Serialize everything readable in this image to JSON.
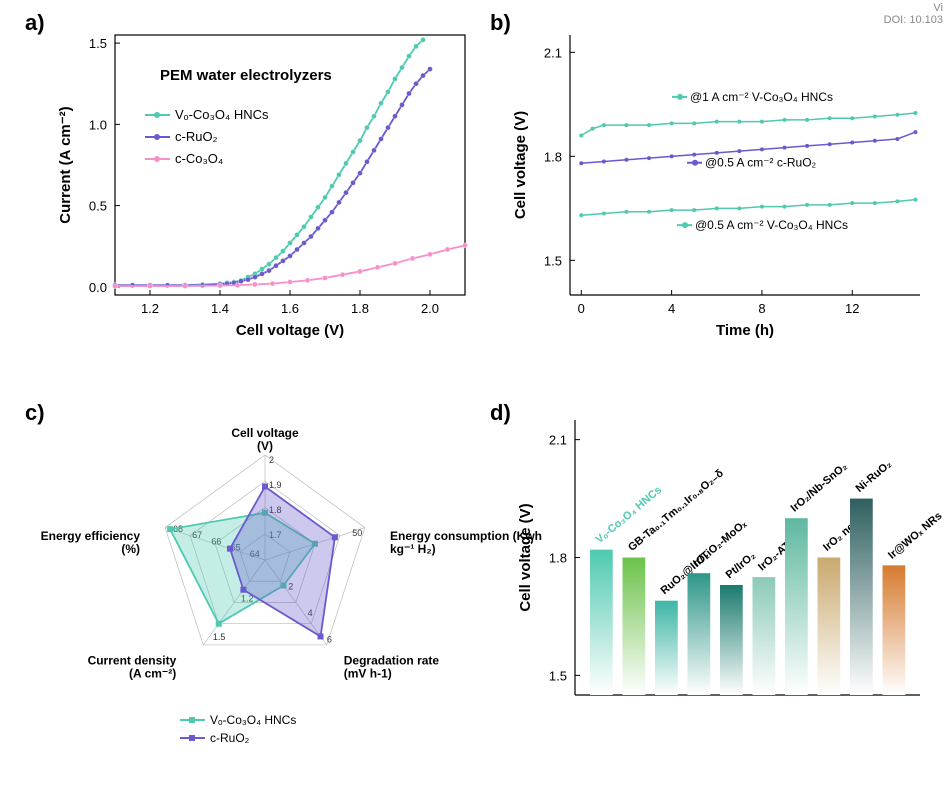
{
  "header": {
    "line1": "Vi",
    "line2": "DOI: 10.103"
  },
  "labels": {
    "a": "a)",
    "b": "b)",
    "c": "c)",
    "d": "d)"
  },
  "panel_a": {
    "type": "line",
    "title": "PEM water electrolyzers",
    "xlabel": "Cell voltage (V)",
    "ylabel": "Current (A cm⁻²)",
    "xlim": [
      1.1,
      2.1
    ],
    "ylim": [
      -0.05,
      1.55
    ],
    "xticks": [
      1.2,
      1.4,
      1.6,
      1.8,
      2.0
    ],
    "yticks": [
      0.0,
      0.5,
      1.0,
      1.5
    ],
    "series": [
      {
        "name": "Vₒ-Co₃O₄ HNCs",
        "color": "#4fc9b0",
        "data": [
          [
            1.1,
            0.01
          ],
          [
            1.15,
            0.01
          ],
          [
            1.2,
            0.01
          ],
          [
            1.25,
            0.01
          ],
          [
            1.3,
            0.01
          ],
          [
            1.35,
            0.015
          ],
          [
            1.4,
            0.02
          ],
          [
            1.42,
            0.025
          ],
          [
            1.44,
            0.03
          ],
          [
            1.46,
            0.04
          ],
          [
            1.48,
            0.06
          ],
          [
            1.5,
            0.08
          ],
          [
            1.52,
            0.11
          ],
          [
            1.54,
            0.14
          ],
          [
            1.56,
            0.18
          ],
          [
            1.58,
            0.22
          ],
          [
            1.6,
            0.27
          ],
          [
            1.62,
            0.32
          ],
          [
            1.64,
            0.37
          ],
          [
            1.66,
            0.43
          ],
          [
            1.68,
            0.49
          ],
          [
            1.7,
            0.55
          ],
          [
            1.72,
            0.62
          ],
          [
            1.74,
            0.69
          ],
          [
            1.76,
            0.76
          ],
          [
            1.78,
            0.83
          ],
          [
            1.8,
            0.9
          ],
          [
            1.82,
            0.98
          ],
          [
            1.84,
            1.05
          ],
          [
            1.86,
            1.13
          ],
          [
            1.88,
            1.2
          ],
          [
            1.9,
            1.28
          ],
          [
            1.92,
            1.35
          ],
          [
            1.94,
            1.42
          ],
          [
            1.96,
            1.48
          ],
          [
            1.98,
            1.52
          ]
        ]
      },
      {
        "name": "c-RuO₂",
        "color": "#6a5acd",
        "data": [
          [
            1.1,
            0.01
          ],
          [
            1.15,
            0.01
          ],
          [
            1.2,
            0.01
          ],
          [
            1.25,
            0.01
          ],
          [
            1.3,
            0.01
          ],
          [
            1.35,
            0.01
          ],
          [
            1.4,
            0.015
          ],
          [
            1.42,
            0.02
          ],
          [
            1.44,
            0.025
          ],
          [
            1.46,
            0.035
          ],
          [
            1.48,
            0.045
          ],
          [
            1.5,
            0.06
          ],
          [
            1.52,
            0.08
          ],
          [
            1.54,
            0.1
          ],
          [
            1.56,
            0.13
          ],
          [
            1.58,
            0.16
          ],
          [
            1.6,
            0.19
          ],
          [
            1.62,
            0.23
          ],
          [
            1.64,
            0.27
          ],
          [
            1.66,
            0.31
          ],
          [
            1.68,
            0.36
          ],
          [
            1.7,
            0.41
          ],
          [
            1.72,
            0.46
          ],
          [
            1.74,
            0.52
          ],
          [
            1.76,
            0.58
          ],
          [
            1.78,
            0.64
          ],
          [
            1.8,
            0.7
          ],
          [
            1.82,
            0.77
          ],
          [
            1.84,
            0.84
          ],
          [
            1.86,
            0.91
          ],
          [
            1.88,
            0.98
          ],
          [
            1.9,
            1.05
          ],
          [
            1.92,
            1.12
          ],
          [
            1.94,
            1.19
          ],
          [
            1.96,
            1.25
          ],
          [
            1.98,
            1.3
          ],
          [
            2.0,
            1.34
          ]
        ]
      },
      {
        "name": "c-Co₃O₄",
        "color": "#f78fc9",
        "data": [
          [
            1.1,
            0.005
          ],
          [
            1.2,
            0.005
          ],
          [
            1.3,
            0.005
          ],
          [
            1.4,
            0.008
          ],
          [
            1.45,
            0.01
          ],
          [
            1.5,
            0.015
          ],
          [
            1.55,
            0.02
          ],
          [
            1.6,
            0.03
          ],
          [
            1.65,
            0.04
          ],
          [
            1.7,
            0.055
          ],
          [
            1.75,
            0.075
          ],
          [
            1.8,
            0.095
          ],
          [
            1.85,
            0.12
          ],
          [
            1.9,
            0.145
          ],
          [
            1.95,
            0.175
          ],
          [
            2.0,
            0.2
          ],
          [
            2.05,
            0.23
          ],
          [
            2.1,
            0.255
          ]
        ]
      }
    ],
    "title_fontsize": 15,
    "marker_size": 2.5,
    "line_width": 1.8
  },
  "panel_b": {
    "type": "line",
    "xlabel": "Time (h)",
    "ylabel": "Cell voltage (V)",
    "xlim": [
      -0.5,
      15
    ],
    "ylim": [
      1.4,
      2.15
    ],
    "xticks": [
      0,
      4,
      8,
      12
    ],
    "yticks": [
      1.5,
      1.8,
      2.1
    ],
    "series": [
      {
        "name": "@1 A cm⁻² V-Co₃O₄ HNCs",
        "color": "#4fc9b0",
        "y": 1.89,
        "data": [
          [
            0,
            1.86
          ],
          [
            0.5,
            1.88
          ],
          [
            1,
            1.89
          ],
          [
            2,
            1.89
          ],
          [
            3,
            1.89
          ],
          [
            4,
            1.895
          ],
          [
            5,
            1.895
          ],
          [
            6,
            1.9
          ],
          [
            7,
            1.9
          ],
          [
            8,
            1.9
          ],
          [
            9,
            1.905
          ],
          [
            10,
            1.905
          ],
          [
            11,
            1.91
          ],
          [
            12,
            1.91
          ],
          [
            13,
            1.915
          ],
          [
            14,
            1.92
          ],
          [
            14.8,
            1.925
          ]
        ]
      },
      {
        "name": "@0.5 A cm⁻² c-RuO₂",
        "color": "#6a5acd",
        "y": 1.8,
        "data": [
          [
            0,
            1.78
          ],
          [
            1,
            1.785
          ],
          [
            2,
            1.79
          ],
          [
            3,
            1.795
          ],
          [
            4,
            1.8
          ],
          [
            5,
            1.805
          ],
          [
            6,
            1.81
          ],
          [
            7,
            1.815
          ],
          [
            8,
            1.82
          ],
          [
            9,
            1.825
          ],
          [
            10,
            1.83
          ],
          [
            11,
            1.835
          ],
          [
            12,
            1.84
          ],
          [
            13,
            1.845
          ],
          [
            14,
            1.85
          ],
          [
            14.8,
            1.87
          ]
        ]
      },
      {
        "name": "@0.5 A cm⁻² V-Co₃O₄ HNCs",
        "color": "#4fc9b0",
        "y": 1.64,
        "data": [
          [
            0,
            1.63
          ],
          [
            1,
            1.635
          ],
          [
            2,
            1.64
          ],
          [
            3,
            1.64
          ],
          [
            4,
            1.645
          ],
          [
            5,
            1.645
          ],
          [
            6,
            1.65
          ],
          [
            7,
            1.65
          ],
          [
            8,
            1.655
          ],
          [
            9,
            1.655
          ],
          [
            10,
            1.66
          ],
          [
            11,
            1.66
          ],
          [
            12,
            1.665
          ],
          [
            13,
            1.665
          ],
          [
            14,
            1.67
          ],
          [
            14.8,
            1.675
          ]
        ]
      }
    ],
    "marker_size": 2,
    "line_width": 1.5
  },
  "panel_c": {
    "type": "radar",
    "axes": [
      {
        "label": "Cell voltage (V)",
        "ticks": [
          1.7,
          1.8,
          1.9,
          2.0
        ]
      },
      {
        "label": "Energy consumption (Kwh kg⁻¹ H₂)",
        "ticks": [
          50
        ]
      },
      {
        "label": "Degradation rate (mV h-1)",
        "ticks": [
          2,
          4,
          6
        ]
      },
      {
        "label": "Current density (A cm⁻²)",
        "ticks": [
          1.2,
          1.5
        ]
      },
      {
        "label": "Energy efficiency (%)",
        "ticks": [
          64,
          65,
          66,
          67,
          68
        ]
      }
    ],
    "series": [
      {
        "name": "Vₒ-Co₃O₄ HNCs",
        "color": "#4fc9b0",
        "fill": "#4fc9b055",
        "values": [
          0.45,
          0.5,
          0.3,
          0.75,
          0.95
        ]
      },
      {
        "name": "c-RuO₂",
        "color": "#6a5acd",
        "fill": "#6a5acd55",
        "values": [
          0.7,
          0.7,
          0.9,
          0.35,
          0.35
        ]
      }
    ]
  },
  "panel_d": {
    "type": "bar",
    "ylabel": "Cell voltage (V)",
    "ylim": [
      1.45,
      2.15
    ],
    "yticks": [
      1.5,
      1.8,
      2.1
    ],
    "bars": [
      {
        "label": "Vₒ-Co₃O₄ HNCs",
        "value": 1.82,
        "color": "#4fc9b0",
        "label_color": "#4fc9b0"
      },
      {
        "label": "GB-Ta₀.₁Tm₀.₁Ir₀.₈O₂₋δ",
        "value": 1.8,
        "color": "#6cc24a"
      },
      {
        "label": "RuO₂@IrO₂",
        "value": 1.69,
        "color": "#3db5a5"
      },
      {
        "label": "Ir/TiO₂-MoOₓ",
        "value": 1.76,
        "color": "#2e9688"
      },
      {
        "label": "Pt/IrO₂",
        "value": 1.73,
        "color": "#1a7a6e"
      },
      {
        "label": "IrO₂-ATO",
        "value": 1.75,
        "color": "#8bc9b8"
      },
      {
        "label": "IrO₂/Nb-SnO₂",
        "value": 1.9,
        "color": "#5eb8a0"
      },
      {
        "label": "IrO₂ needle",
        "value": 1.8,
        "color": "#c9a96e"
      },
      {
        "label": "Ni-RuO₂",
        "value": 1.95,
        "color": "#2f5f5f"
      },
      {
        "label": "Ir@WOₓ NRs",
        "value": 1.78,
        "color": "#d67b2f"
      }
    ]
  }
}
